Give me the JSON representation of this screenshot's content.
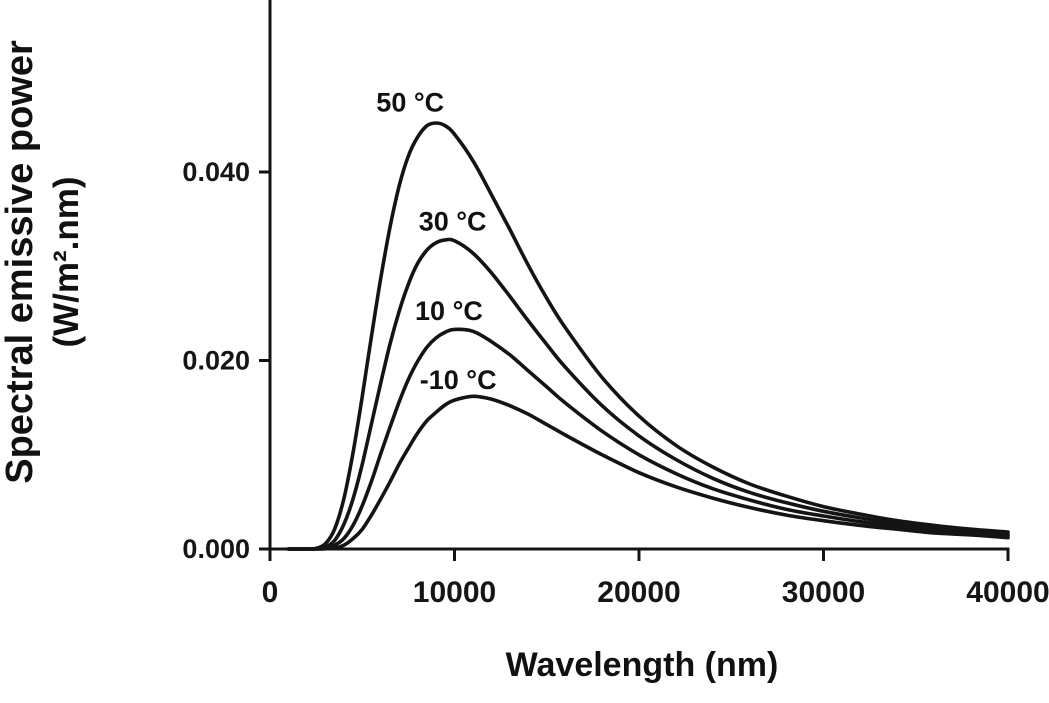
{
  "figure": {
    "background": "#ffffff",
    "ink_color": "#141414"
  },
  "chart_data": {
    "type": "line",
    "title": "",
    "xlabel": "Wavelength (nm)",
    "ylabel_line1": "Spectral emissive power",
    "ylabel_line2": "(W/m².nm)",
    "xlim": [
      0,
      40000
    ],
    "ylim": [
      0,
      0.0583
    ],
    "grid": false,
    "legend_position": "none (inline curve annotations)",
    "x_ticks": [
      0,
      10000,
      20000,
      30000,
      40000
    ],
    "x_tick_labels": [
      "0",
      "10000",
      "20000",
      "30000",
      "40000"
    ],
    "y_ticks": [
      0.0,
      0.02,
      0.04
    ],
    "y_tick_labels": [
      "0.000",
      "0.020",
      "0.040"
    ],
    "x_nm": [
      1000,
      2000,
      2500,
      3000,
      3500,
      4000,
      4500,
      5000,
      5500,
      6000,
      6500,
      7000,
      7500,
      8000,
      8500,
      9000,
      9500,
      10000,
      11000,
      12000,
      13000,
      14000,
      15000,
      16000,
      18000,
      20000,
      22000,
      24000,
      26000,
      28000,
      30000,
      32000,
      34000,
      36000,
      38000,
      40000
    ],
    "series": [
      {
        "name": "50 °C",
        "temperature_C": 50,
        "values": [
          0,
          0,
          7e-05,
          0.00055,
          0.0021,
          0.0053,
          0.0102,
          0.0162,
          0.0226,
          0.0287,
          0.0341,
          0.0385,
          0.0417,
          0.0437,
          0.0449,
          0.0452,
          0.0449,
          0.044,
          0.0412,
          0.0376,
          0.0339,
          0.0301,
          0.0266,
          0.0235,
          0.0182,
          0.0141,
          0.011,
          0.0087,
          0.0069,
          0.0056,
          0.0045,
          0.0037,
          0.003,
          0.0025,
          0.0021,
          0.0018
        ]
      },
      {
        "name": "30 °C",
        "temperature_C": 30,
        "values": [
          0,
          0,
          2e-05,
          0.0002,
          0.0009,
          0.0026,
          0.0053,
          0.009,
          0.0133,
          0.0176,
          0.0217,
          0.0252,
          0.0281,
          0.0303,
          0.0317,
          0.0325,
          0.0328,
          0.0327,
          0.0314,
          0.0293,
          0.0268,
          0.0242,
          0.0217,
          0.0193,
          0.0152,
          0.012,
          0.0095,
          0.0075,
          0.006,
          0.0049,
          0.004,
          0.0033,
          0.0027,
          0.0023,
          0.0019,
          0.0016
        ]
      },
      {
        "name": "10 °C",
        "temperature_C": 10,
        "values": [
          0,
          0,
          0,
          7e-05,
          0.0004,
          0.0011,
          0.0025,
          0.0046,
          0.0072,
          0.0101,
          0.0129,
          0.0156,
          0.018,
          0.0199,
          0.0214,
          0.0224,
          0.023,
          0.0233,
          0.0231,
          0.022,
          0.0206,
          0.0189,
          0.0172,
          0.0155,
          0.0125,
          0.01,
          0.008,
          0.0064,
          0.0052,
          0.0042,
          0.0035,
          0.0029,
          0.0024,
          0.002,
          0.0017,
          0.0014
        ]
      },
      {
        "name": "-10 °C",
        "temperature_C": -10,
        "values": [
          0,
          0,
          0,
          2e-05,
          0.0001,
          0.0004,
          0.0011,
          0.0021,
          0.0036,
          0.0053,
          0.0071,
          0.009,
          0.0107,
          0.0123,
          0.0136,
          0.0145,
          0.0153,
          0.0158,
          0.0162,
          0.0159,
          0.0152,
          0.0143,
          0.0132,
          0.0121,
          0.01,
          0.0081,
          0.0066,
          0.0054,
          0.0044,
          0.0036,
          0.003,
          0.0025,
          0.0021,
          0.0017,
          0.0015,
          0.0012
        ]
      }
    ],
    "annotations": [
      {
        "text": "50 °C",
        "x_nm": 7600,
        "y": 0.0464
      },
      {
        "text": "30 °C",
        "x_nm": 9900,
        "y": 0.0338
      },
      {
        "text": "10 °C",
        "x_nm": 9700,
        "y": 0.0243
      },
      {
        "text": "-10 °C",
        "x_nm": 10200,
        "y": 0.017
      }
    ]
  }
}
